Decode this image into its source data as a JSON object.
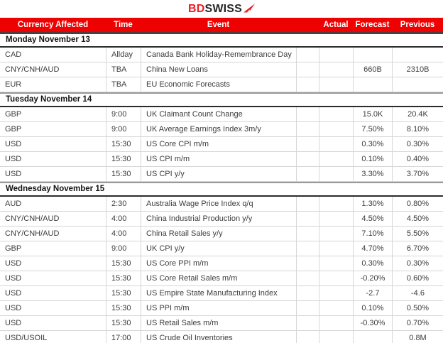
{
  "logo": {
    "bd": "BD",
    "swiss": "SWISS"
  },
  "colors": {
    "header_bg": "#ee0101",
    "header_text": "#ffffff",
    "logo_red": "#ed1c24",
    "logo_dark": "#252525",
    "header_underline": "#4e3d3d",
    "section_line_dark": "#2b2b2b",
    "section_line_gray": "#999999",
    "row_line": "#d6d6d6",
    "body_text": "#3d3d3d"
  },
  "table": {
    "columns": [
      {
        "key": "currency",
        "label": "Currency Affected"
      },
      {
        "key": "time",
        "label": "Time"
      },
      {
        "key": "event",
        "label": "Event"
      },
      {
        "key": "impact",
        "label": ""
      },
      {
        "key": "actual",
        "label": "Actual"
      },
      {
        "key": "forecast",
        "label": "Forecast"
      },
      {
        "key": "previous",
        "label": "Previous"
      }
    ],
    "sections": [
      {
        "title": "Monday November 13",
        "rows": [
          {
            "currency": "CAD",
            "time": "Allday",
            "event": "Canada Bank Holiday-Remembrance Day",
            "impact": "",
            "actual": "",
            "forecast": "",
            "previous": ""
          },
          {
            "currency": "CNY/CNH/AUD",
            "time": "TBA",
            "event": "China New Loans",
            "impact": "",
            "actual": "",
            "forecast": "660B",
            "previous": "2310B"
          },
          {
            "currency": "EUR",
            "time": "TBA",
            "event": "EU Economic Forecasts",
            "impact": "",
            "actual": "",
            "forecast": "",
            "previous": ""
          }
        ]
      },
      {
        "title": "Tuesday November 14",
        "rows": [
          {
            "currency": "GBP",
            "time": "9:00",
            "event": "UK Claimant Count Change",
            "impact": "",
            "actual": "",
            "forecast": "15.0K",
            "previous": "20.4K"
          },
          {
            "currency": "GBP",
            "time": "9:00",
            "event": "UK Average Earnings Index 3m/y",
            "impact": "",
            "actual": "",
            "forecast": "7.50%",
            "previous": "8.10%"
          },
          {
            "currency": "USD",
            "time": "15:30",
            "event": "US Core CPI m/m",
            "impact": "",
            "actual": "",
            "forecast": "0.30%",
            "previous": "0.30%"
          },
          {
            "currency": "USD",
            "time": "15:30",
            "event": "US CPI m/m",
            "impact": "",
            "actual": "",
            "forecast": "0.10%",
            "previous": "0.40%"
          },
          {
            "currency": "USD",
            "time": "15:30",
            "event": "US CPI y/y",
            "impact": "",
            "actual": "",
            "forecast": "3.30%",
            "previous": "3.70%"
          }
        ]
      },
      {
        "title": "Wednesday November 15",
        "rows": [
          {
            "currency": "AUD",
            "time": "2:30",
            "event": "Australia Wage Price Index q/q",
            "impact": "",
            "actual": "",
            "forecast": "1.30%",
            "previous": "0.80%"
          },
          {
            "currency": "CNY/CNH/AUD",
            "time": "4:00",
            "event": "China Industrial Production y/y",
            "impact": "",
            "actual": "",
            "forecast": "4.50%",
            "previous": "4.50%"
          },
          {
            "currency": "CNY/CNH/AUD",
            "time": "4:00",
            "event": "China Retail Sales y/y",
            "impact": "",
            "actual": "",
            "forecast": "7.10%",
            "previous": "5.50%"
          },
          {
            "currency": "GBP",
            "time": "9:00",
            "event": "UK CPI y/y",
            "impact": "",
            "actual": "",
            "forecast": "4.70%",
            "previous": "6.70%"
          },
          {
            "currency": "USD",
            "time": "15:30",
            "event": "US Core PPI m/m",
            "impact": "",
            "actual": "",
            "forecast": "0.30%",
            "previous": "0.30%"
          },
          {
            "currency": "USD",
            "time": "15:30",
            "event": "US Core Retail Sales m/m",
            "impact": "",
            "actual": "",
            "forecast": "-0.20%",
            "previous": "0.60%"
          },
          {
            "currency": "USD",
            "time": "15:30",
            "event": "US Empire State Manufacturing Index",
            "impact": "",
            "actual": "",
            "forecast": "-2.7",
            "previous": "-4.6"
          },
          {
            "currency": "USD",
            "time": "15:30",
            "event": "US PPI m/m",
            "impact": "",
            "actual": "",
            "forecast": "0.10%",
            "previous": "0.50%"
          },
          {
            "currency": "USD",
            "time": "15:30",
            "event": "US Retail Sales m/m",
            "impact": "",
            "actual": "",
            "forecast": "-0.30%",
            "previous": "0.70%"
          },
          {
            "currency": "USD/USOIL",
            "time": "17:00",
            "event": "US Crude Oil Inventories",
            "impact": "",
            "actual": "",
            "forecast": "",
            "previous": "0.8M"
          }
        ]
      }
    ]
  }
}
